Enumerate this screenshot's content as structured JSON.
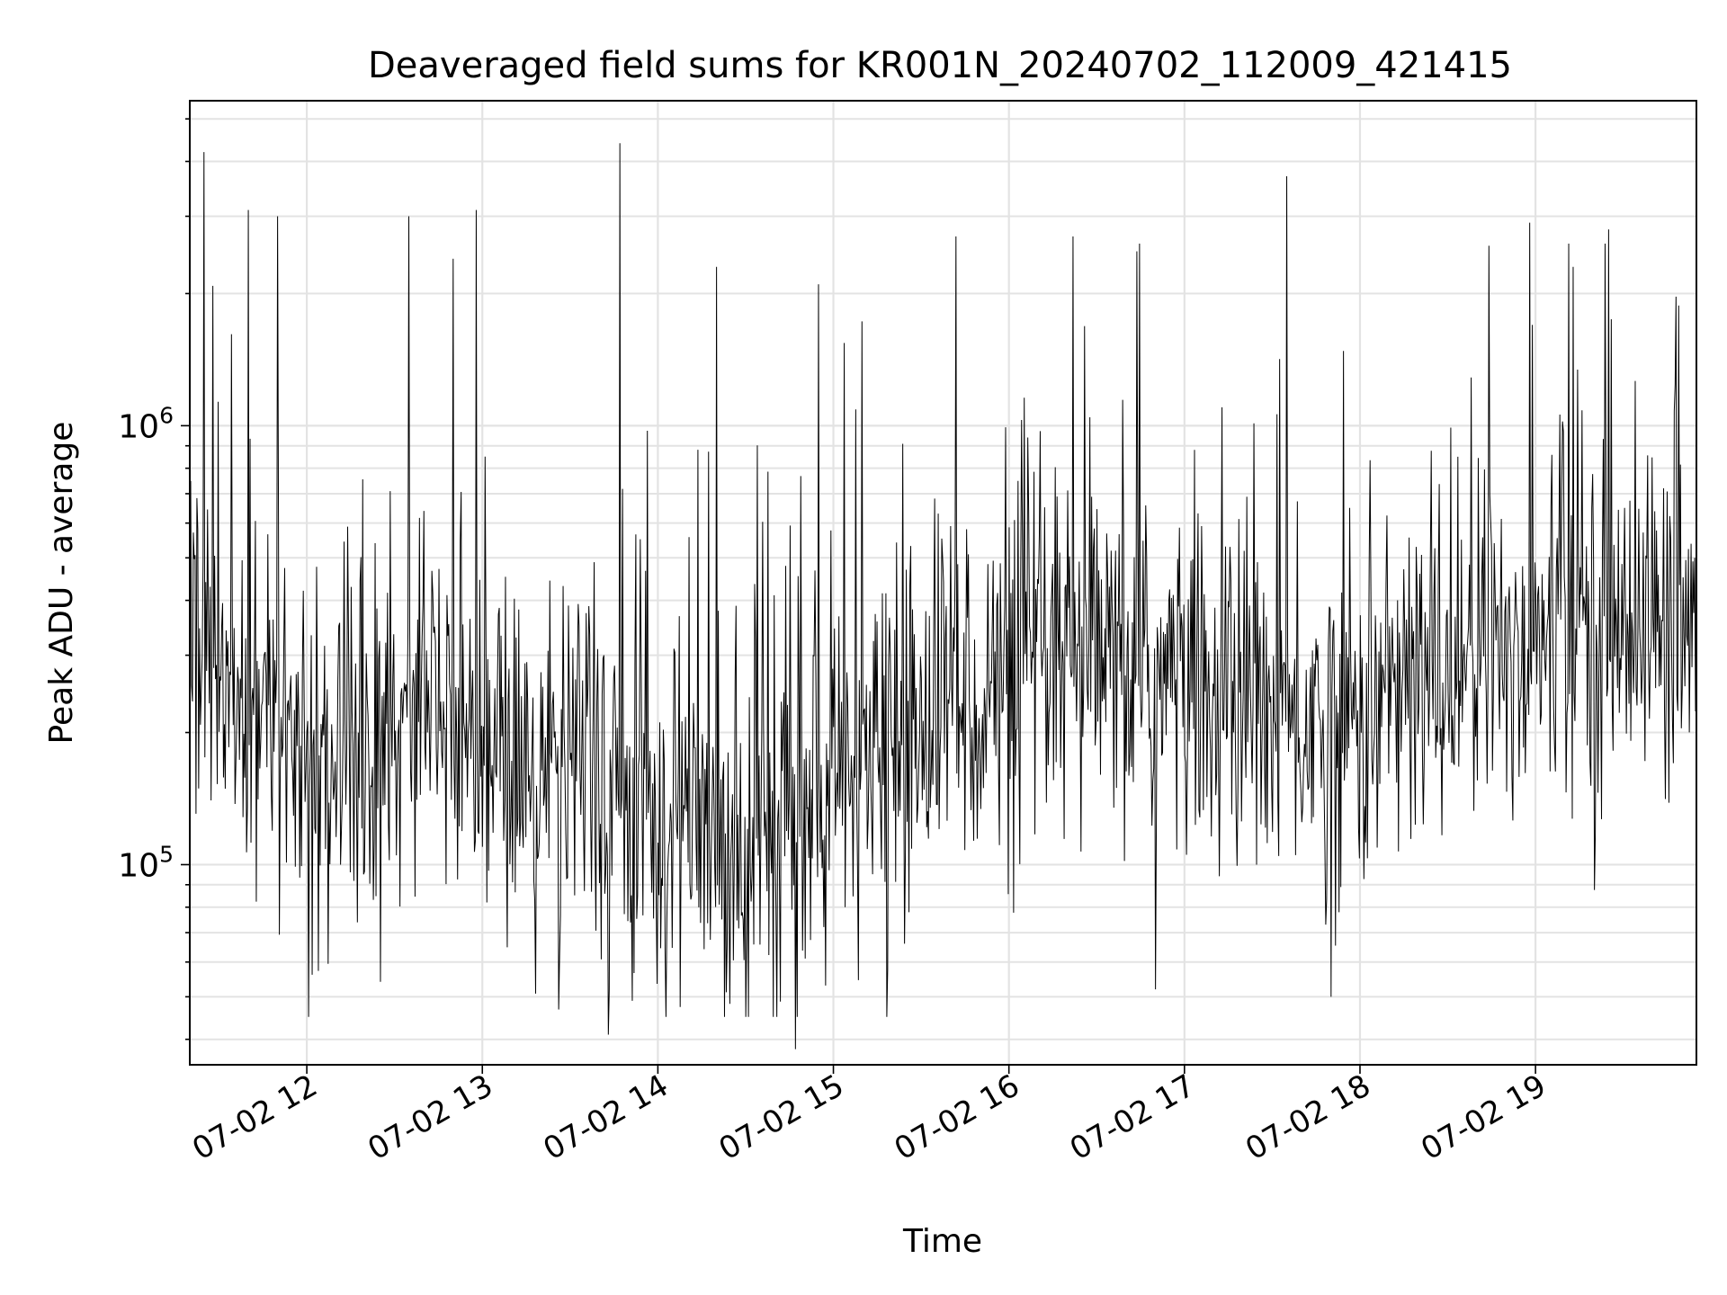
{
  "chart_data": {
    "type": "line",
    "title": "Deaveraged field sums for KR001N_20240702_112009_421415",
    "xlabel": "Time",
    "ylabel": "Peak ADU - average",
    "yscale": "log",
    "xlim": [
      "2024-07-02 11:20",
      "2024-07-02 19:55"
    ],
    "ylim": [
      35000,
      5500000
    ],
    "x_ticks": [
      "07-02 12",
      "07-02 13",
      "07-02 14",
      "07-02 15",
      "07-02 16",
      "07-02 17",
      "07-02 18",
      "07-02 19"
    ],
    "y_ticks": [
      {
        "base": "10",
        "exp": "5",
        "value": 100000
      },
      {
        "base": "10",
        "exp": "6",
        "value": 1000000
      }
    ],
    "grid": true,
    "line_color": "#000000",
    "series": [
      {
        "x": [
          "2024-07-02 11:20",
          "2024-07-02 11:30",
          "2024-07-02 11:40",
          "2024-07-02 11:50",
          "2024-07-02 12:00",
          "2024-07-02 12:10",
          "2024-07-02 12:20",
          "2024-07-02 12:30",
          "2024-07-02 12:40",
          "2024-07-02 12:50",
          "2024-07-02 13:00",
          "2024-07-02 13:10",
          "2024-07-02 13:20",
          "2024-07-02 13:30",
          "2024-07-02 13:40",
          "2024-07-02 13:50",
          "2024-07-02 14:00",
          "2024-07-02 14:10",
          "2024-07-02 14:20",
          "2024-07-02 14:30",
          "2024-07-02 14:40",
          "2024-07-02 14:50",
          "2024-07-02 15:00",
          "2024-07-02 15:10",
          "2024-07-02 15:20",
          "2024-07-02 15:30",
          "2024-07-02 15:40",
          "2024-07-02 15:50",
          "2024-07-02 16:00",
          "2024-07-02 16:10",
          "2024-07-02 16:20",
          "2024-07-02 16:30",
          "2024-07-02 16:40",
          "2024-07-02 16:50",
          "2024-07-02 17:00",
          "2024-07-02 17:10",
          "2024-07-02 17:20",
          "2024-07-02 17:30",
          "2024-07-02 17:40",
          "2024-07-02 17:50",
          "2024-07-02 18:00",
          "2024-07-02 18:10",
          "2024-07-02 18:20",
          "2024-07-02 18:30",
          "2024-07-02 18:40",
          "2024-07-02 18:50",
          "2024-07-02 19:00",
          "2024-07-02 19:10",
          "2024-07-02 19:20",
          "2024-07-02 19:30",
          "2024-07-02 19:40",
          "2024-07-02 19:50"
        ],
        "y": [
          300000,
          230000,
          210000,
          200000,
          180000,
          170000,
          165000,
          200000,
          260000,
          250000,
          190000,
          160000,
          160000,
          155000,
          150000,
          150000,
          125000,
          120000,
          115000,
          110000,
          115000,
          120000,
          150000,
          160000,
          180000,
          200000,
          260000,
          240000,
          250000,
          260000,
          270000,
          270000,
          270000,
          260000,
          250000,
          240000,
          230000,
          220000,
          210000,
          210000,
          220000,
          240000,
          260000,
          280000,
          290000,
          300000,
          320000,
          330000,
          350000,
          360000,
          360000,
          340000
        ],
        "peaks": [
          {
            "x": "2024-07-02 11:25",
            "y": 4200000
          },
          {
            "x": "2024-07-02 11:40",
            "y": 3100000
          },
          {
            "x": "2024-07-02 11:50",
            "y": 3000000
          },
          {
            "x": "2024-07-02 12:35",
            "y": 3000000
          },
          {
            "x": "2024-07-02 12:50",
            "y": 2400000
          },
          {
            "x": "2024-07-02 12:58",
            "y": 3100000
          },
          {
            "x": "2024-07-02 13:47",
            "y": 4400000
          },
          {
            "x": "2024-07-02 14:20",
            "y": 2300000
          },
          {
            "x": "2024-07-02 14:55",
            "y": 2100000
          },
          {
            "x": "2024-07-02 15:42",
            "y": 2700000
          },
          {
            "x": "2024-07-02 16:22",
            "y": 2700000
          },
          {
            "x": "2024-07-02 17:35",
            "y": 3700000
          },
          {
            "x": "2024-07-02 18:58",
            "y": 2900000
          },
          {
            "x": "2024-07-02 19:25",
            "y": 2800000
          }
        ],
        "troughs": [
          {
            "x": "2024-07-02 13:43",
            "y": 41000
          },
          {
            "x": "2024-07-02 14:47",
            "y": 38000
          },
          {
            "x": "2024-07-02 16:50",
            "y": 52000
          },
          {
            "x": "2024-07-02 17:50",
            "y": 50000
          }
        ]
      }
    ]
  }
}
